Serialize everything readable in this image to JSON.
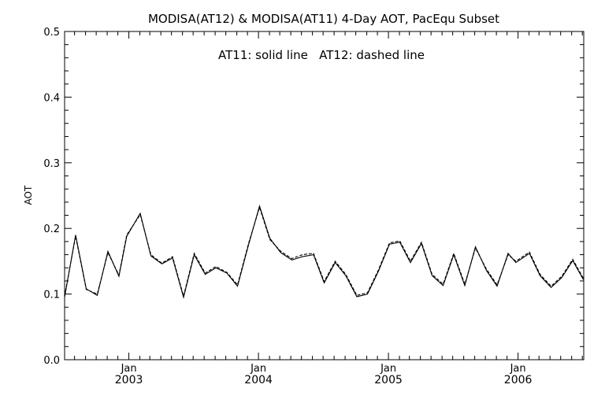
{
  "chart_data": {
    "type": "line",
    "title": "MODISA(AT12) & MODISA(AT11) 4-Day AOT, PacEqu Subset",
    "annotation": "AT11: solid line   AT12: dashed line",
    "ylabel": "AOT",
    "ylim": [
      0.0,
      0.5
    ],
    "yticks": [
      "0.0",
      "0.1",
      "0.2",
      "0.3",
      "0.4",
      "0.5"
    ],
    "xlim": [
      "2002-07-04",
      "2006-07-05"
    ],
    "xticks": [
      {
        "date": "2003-01-01",
        "month": "Jan",
        "year": "2003"
      },
      {
        "date": "2004-01-01",
        "month": "Jan",
        "year": "2004"
      },
      {
        "date": "2005-01-01",
        "month": "Jan",
        "year": "2005"
      },
      {
        "date": "2006-01-01",
        "month": "Jan",
        "year": "2006"
      }
    ],
    "grid": false,
    "x": [
      "2002-07-04",
      "2002-08-04",
      "2002-09-03",
      "2002-10-04",
      "2002-11-03",
      "2002-12-04",
      "2002-12-26",
      "2003-02-02",
      "2003-03-04",
      "2003-04-04",
      "2003-05-04",
      "2003-06-04",
      "2003-07-04",
      "2003-08-04",
      "2003-09-03",
      "2003-10-04",
      "2003-11-03",
      "2003-12-04",
      "2004-01-04",
      "2004-02-02",
      "2004-03-04",
      "2004-04-04",
      "2004-05-04",
      "2004-06-04",
      "2004-07-04",
      "2004-08-04",
      "2004-09-03",
      "2004-10-04",
      "2004-11-03",
      "2004-12-04",
      "2005-01-04",
      "2005-02-02",
      "2005-03-04",
      "2005-04-04",
      "2005-05-04",
      "2005-06-04",
      "2005-07-04",
      "2005-08-04",
      "2005-09-03",
      "2005-10-04",
      "2005-11-03",
      "2005-12-04",
      "2005-12-26",
      "2006-02-02",
      "2006-03-04",
      "2006-04-04",
      "2006-05-04",
      "2006-06-04",
      "2006-07-04"
    ],
    "series": [
      {
        "name": "AT11",
        "dash": "solid",
        "values": [
          0.095,
          0.19,
          0.108,
          0.098,
          0.165,
          0.127,
          0.188,
          0.223,
          0.158,
          0.146,
          0.155,
          0.095,
          0.16,
          0.13,
          0.14,
          0.132,
          0.112,
          0.175,
          0.234,
          0.185,
          0.163,
          0.152,
          0.157,
          0.16,
          0.117,
          0.148,
          0.128,
          0.096,
          0.1,
          0.135,
          0.176,
          0.179,
          0.148,
          0.177,
          0.128,
          0.113,
          0.16,
          0.113,
          0.172,
          0.136,
          0.112,
          0.162,
          0.148,
          0.162,
          0.128,
          0.11,
          0.125,
          0.151,
          0.122
        ]
      },
      {
        "name": "AT12",
        "dash": "dashed",
        "values": [
          0.097,
          0.188,
          0.107,
          0.1,
          0.163,
          0.129,
          0.19,
          0.221,
          0.16,
          0.147,
          0.157,
          0.097,
          0.162,
          0.132,
          0.142,
          0.133,
          0.114,
          0.177,
          0.232,
          0.183,
          0.165,
          0.154,
          0.16,
          0.162,
          0.119,
          0.15,
          0.13,
          0.098,
          0.102,
          0.137,
          0.178,
          0.181,
          0.15,
          0.179,
          0.13,
          0.115,
          0.162,
          0.115,
          0.17,
          0.138,
          0.114,
          0.16,
          0.15,
          0.164,
          0.13,
          0.112,
          0.127,
          0.153,
          0.124
        ]
      }
    ]
  }
}
